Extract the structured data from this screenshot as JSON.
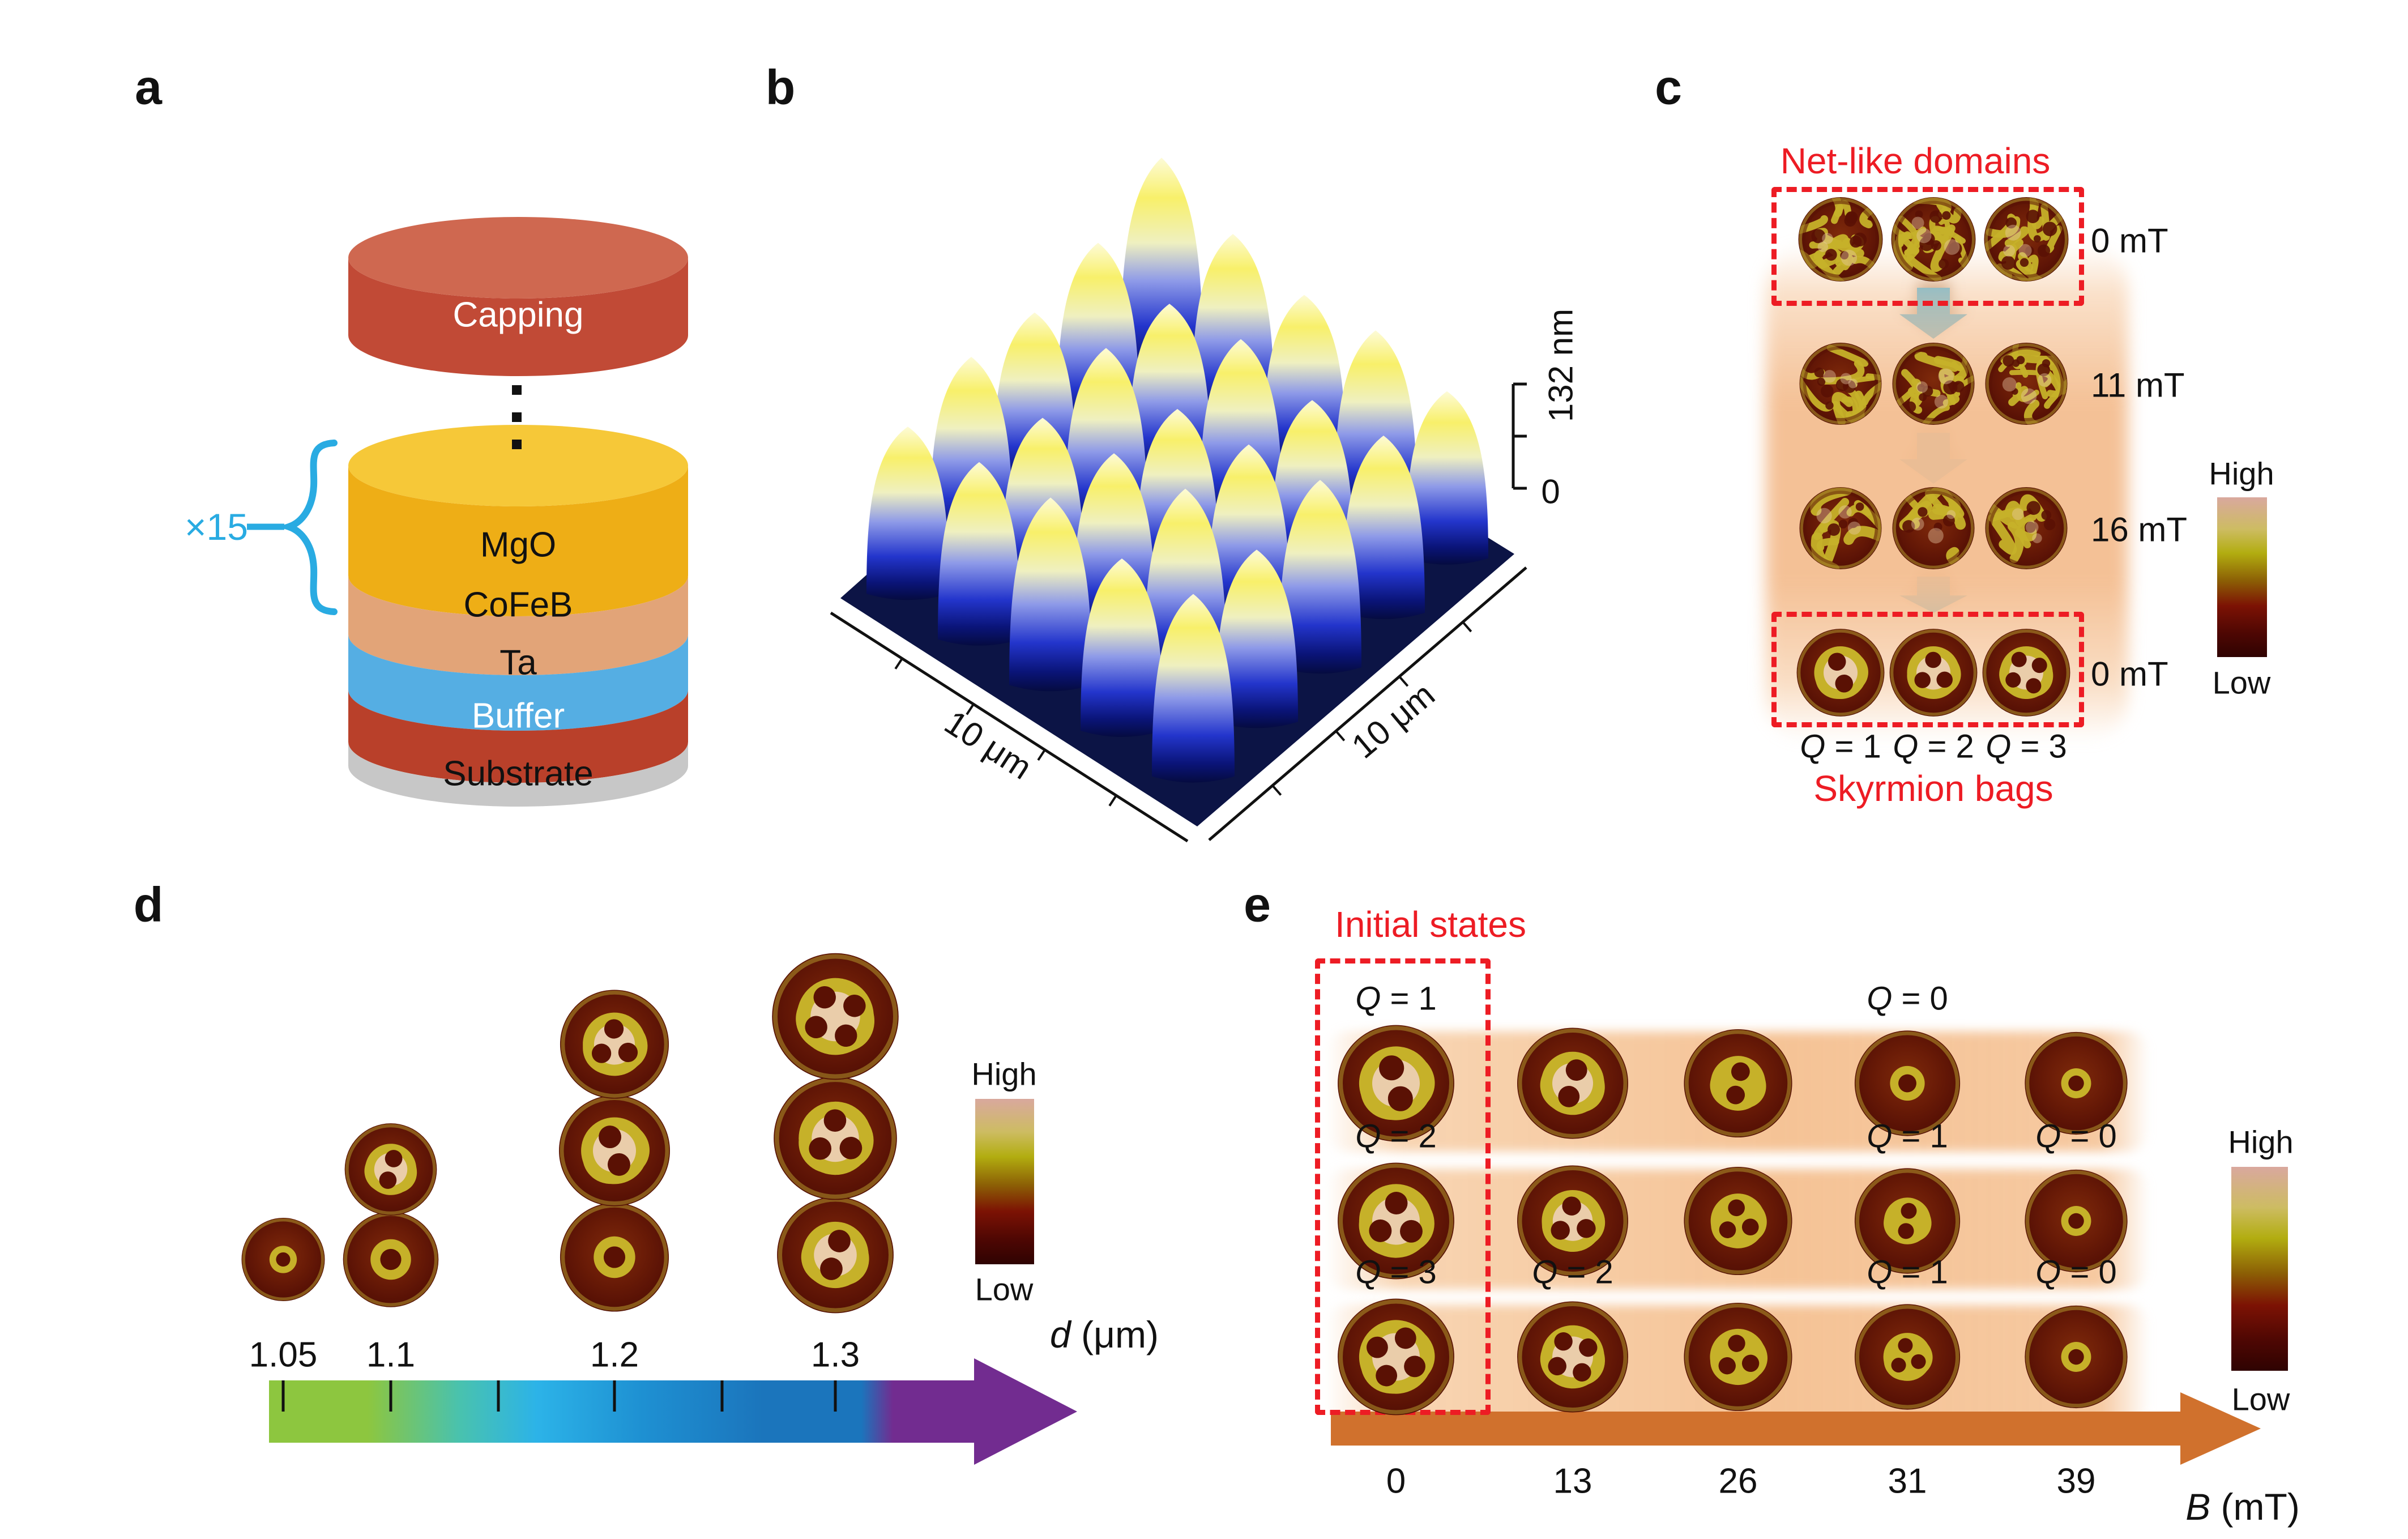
{
  "colors": {
    "red": "#ed1c24",
    "blue": "#29abe2",
    "arrow_blue": "#3cb4e8",
    "arrow_orange": "#d0712d",
    "glow_peach": "#f6c89e",
    "colorbar_stops": [
      "#d9a89e",
      "#cdbc62",
      "#b2ad10",
      "#8c6005",
      "#7c1204",
      "#4e0703",
      "#2f0302"
    ],
    "d_axis_stops": [
      "#8dc63f",
      "#8dc63f",
      "#49c2ae",
      "#2cb3e8",
      "#1e90d2",
      "#1b75bc",
      "#1b75bc",
      "#722c90",
      "#722c90"
    ],
    "pillar_stops": [
      "#fdfbd8",
      "#f8f06a",
      "#eff0c0",
      "#8e9ae8",
      "#2335cc",
      "#0a1478",
      "#050b40"
    ],
    "afm_floor": "#0c1445",
    "disk_base": "#661807",
    "disk_ring": "#c6b129",
    "disk_pale": "#eacdaa",
    "disk_hole": "#5a1104"
  },
  "panels": {
    "a": {
      "letter": "a",
      "repeat_label": "×15",
      "layers": [
        {
          "name": "Capping",
          "side": "#c14a36",
          "top": "#cf6850",
          "text": "#ffffff"
        },
        {
          "name": "MgO",
          "side": "#eeae16",
          "top": "#f6c838",
          "text": "#111111"
        },
        {
          "name": "CoFeB",
          "side": "#e2a478",
          "text": "#111111"
        },
        {
          "name": "Ta",
          "side": "#55aee3",
          "text": "#111111"
        },
        {
          "name": "Buffer",
          "side": "#b9402a",
          "text": "#ffffff"
        },
        {
          "name": "Substrate",
          "side": "#c7c7c7",
          "text": "#111111"
        }
      ]
    },
    "b": {
      "letter": "b",
      "axis_left": "10 μm",
      "axis_right": "10 μm",
      "z_top": "132 nm",
      "z_bottom": "0"
    },
    "c": {
      "letter": "c",
      "title_top": "Net-like domains",
      "title_bottom": "Skyrmion bags",
      "colorbar": {
        "high": "High",
        "low": "Low"
      },
      "column_labels": [
        "Q = 1",
        "Q = 2",
        "Q = 3"
      ],
      "rows": [
        {
          "field": "0 mT",
          "boxed": true,
          "disks": [
            {
              "pattern": "net",
              "seed": 3,
              "density": 16
            },
            {
              "pattern": "net",
              "seed": 7,
              "density": 16
            },
            {
              "pattern": "net",
              "seed": 11,
              "density": 16
            }
          ]
        },
        {
          "field": "11 mT",
          "boxed": false,
          "disks": [
            {
              "pattern": "net",
              "seed": 17,
              "density": 12
            },
            {
              "pattern": "net",
              "seed": 23,
              "density": 12
            },
            {
              "pattern": "net",
              "seed": 29,
              "density": 12
            }
          ]
        },
        {
          "field": "16 mT",
          "boxed": false,
          "disks": [
            {
              "pattern": "net",
              "seed": 31,
              "density": 8
            },
            {
              "pattern": "net",
              "seed": 37,
              "density": 8
            },
            {
              "pattern": "net",
              "seed": 41,
              "density": 8
            }
          ]
        },
        {
          "field": "0 mT",
          "boxed": true,
          "disks": [
            {
              "pattern": "bag",
              "holes": 2,
              "scale": 0.95
            },
            {
              "pattern": "bag",
              "holes": 3,
              "scale": 0.95
            },
            {
              "pattern": "bag",
              "holes": 4,
              "scale": 0.95
            }
          ]
        }
      ]
    },
    "d": {
      "letter": "d",
      "axis_label": "d (μm)",
      "tick_labels": [
        "1.05",
        "1.1",
        "1.2",
        "1.3"
      ],
      "colorbar": {
        "high": "High",
        "low": "Low"
      },
      "columns": [
        {
          "tick": "1.05",
          "disks": [
            {
              "pattern": "bag",
              "holes": 1,
              "scale": 0.62
            }
          ]
        },
        {
          "tick": "1.1",
          "disks": [
            {
              "pattern": "bag",
              "holes": 2,
              "scale": 0.88
            },
            {
              "pattern": "bag",
              "holes": 1,
              "scale": 0.8
            }
          ]
        },
        {
          "tick": "1.2",
          "disks": [
            {
              "pattern": "bag",
              "holes": 3,
              "scale": 0.92
            },
            {
              "pattern": "bag",
              "holes": 2,
              "scale": 0.95
            },
            {
              "pattern": "bag",
              "holes": 1,
              "scale": 0.72
            }
          ]
        },
        {
          "tick": "1.3",
          "disks": [
            {
              "pattern": "bag",
              "holes": 4,
              "scale": 0.96
            },
            {
              "pattern": "bag",
              "holes": 3,
              "scale": 0.94
            },
            {
              "pattern": "bag",
              "holes": 2,
              "scale": 0.9
            }
          ]
        }
      ]
    },
    "e": {
      "letter": "e",
      "title": "Initial states",
      "axis_label": "B (mT)",
      "tick_labels": [
        "0",
        "13",
        "26",
        "31",
        "39"
      ],
      "colorbar": {
        "high": "High",
        "low": "Low"
      },
      "rows": [
        {
          "q_labels": [
            {
              "col": 0,
              "text": "Q = 1"
            },
            {
              "col": 3,
              "text": "Q = 0"
            }
          ],
          "disks": [
            {
              "pattern": "bag",
              "holes": 2,
              "scale": 1.0
            },
            {
              "pattern": "bag",
              "holes": 2,
              "scale": 0.9
            },
            {
              "pattern": "bag",
              "holes": 2,
              "scale": 0.8
            },
            {
              "pattern": "bag",
              "holes": 1,
              "scale": 0.62
            },
            {
              "pattern": "bag",
              "holes": 1,
              "scale": 0.55
            }
          ]
        },
        {
          "q_labels": [
            {
              "col": 0,
              "text": "Q = 2"
            },
            {
              "col": 3,
              "text": "Q = 1"
            },
            {
              "col": 4,
              "text": "Q = 0"
            }
          ],
          "disks": [
            {
              "pattern": "bag",
              "holes": 3,
              "scale": 1.0
            },
            {
              "pattern": "bag",
              "holes": 3,
              "scale": 0.88
            },
            {
              "pattern": "bag",
              "holes": 3,
              "scale": 0.8
            },
            {
              "pattern": "bag",
              "holes": 2,
              "scale": 0.7
            },
            {
              "pattern": "bag",
              "holes": 1,
              "scale": 0.55
            }
          ]
        },
        {
          "q_labels": [
            {
              "col": 0,
              "text": "Q = 3"
            },
            {
              "col": 1,
              "text": "Q = 2"
            },
            {
              "col": 3,
              "text": "Q = 1"
            },
            {
              "col": 4,
              "text": "Q = 0"
            }
          ],
          "disks": [
            {
              "pattern": "bag",
              "holes": 4,
              "scale": 1.0
            },
            {
              "pattern": "bag",
              "holes": 4,
              "scale": 0.9
            },
            {
              "pattern": "bag",
              "holes": 3,
              "scale": 0.82
            },
            {
              "pattern": "bag",
              "holes": 3,
              "scale": 0.72
            },
            {
              "pattern": "bag",
              "holes": 1,
              "scale": 0.55
            }
          ]
        }
      ]
    }
  }
}
